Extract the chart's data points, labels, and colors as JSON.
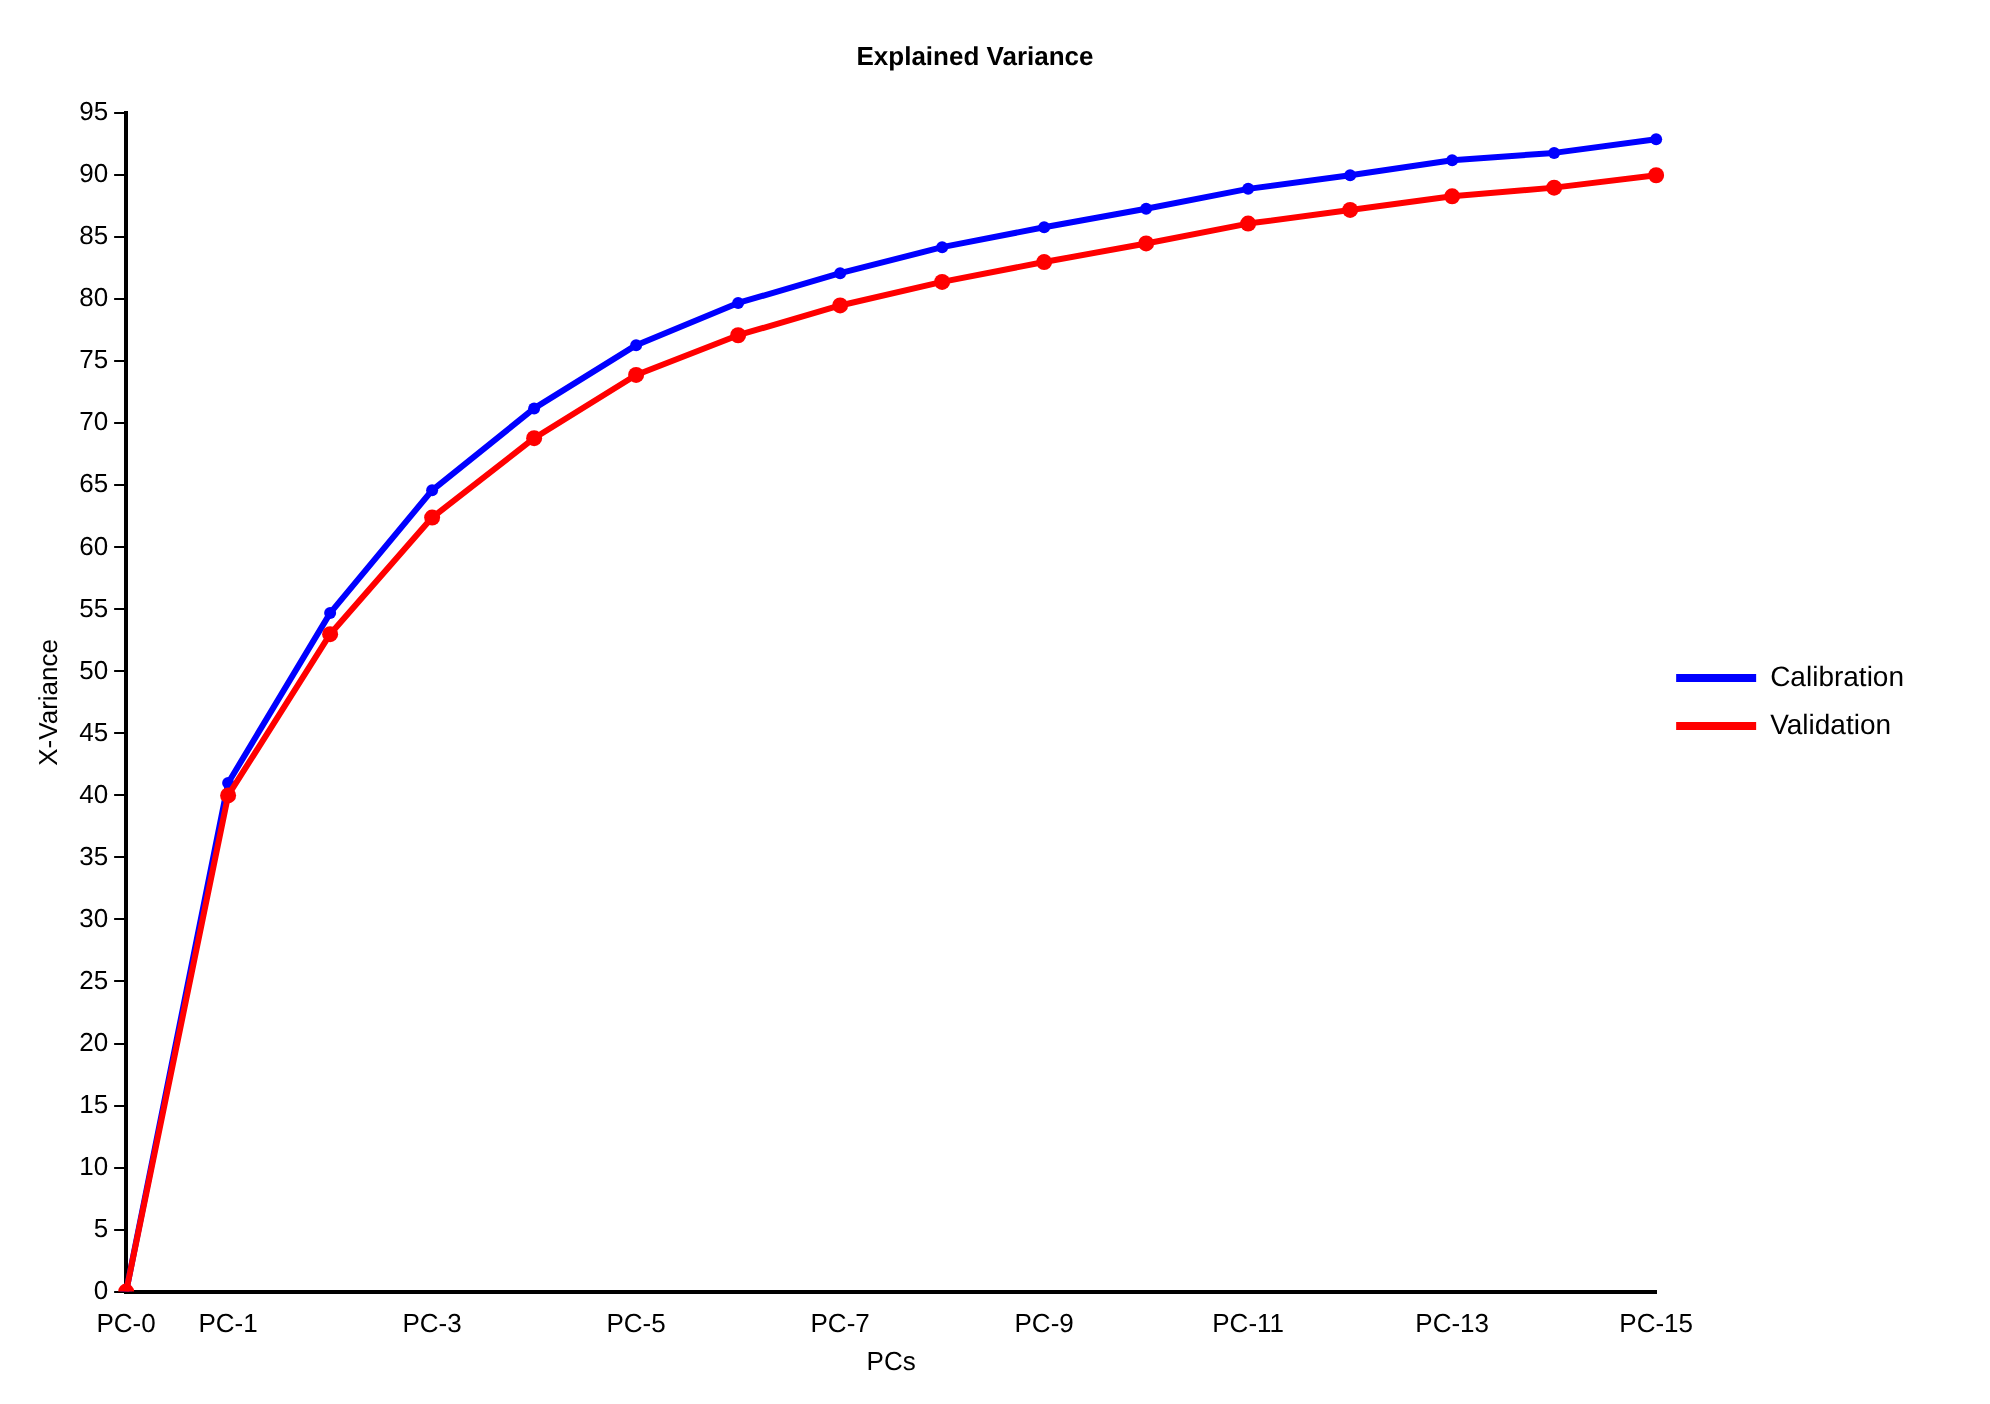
{
  "chart_data": {
    "type": "line",
    "title": "Explained Variance",
    "xlabel": "PCs",
    "ylabel": "X-Variance",
    "categories": [
      "PC-0",
      "PC-1",
      null,
      "PC-3",
      null,
      "PC-5",
      null,
      "PC-7",
      null,
      "PC-9",
      null,
      "PC-11",
      null,
      "PC-13",
      null,
      "PC-15"
    ],
    "series": [
      {
        "name": "Calibration",
        "color": "#0000ff",
        "values": [
          0,
          41,
          54.7,
          64.6,
          71.2,
          76.3,
          79.7,
          82.1,
          84.2,
          85.8,
          87.3,
          88.9,
          90.0,
          91.2,
          91.8,
          92.9
        ]
      },
      {
        "name": "Validation",
        "color": "#ff0000",
        "values": [
          0,
          40,
          53,
          62.4,
          68.8,
          73.9,
          77.1,
          79.5,
          81.4,
          83.0,
          84.5,
          86.1,
          87.2,
          88.3,
          89.0,
          90.0
        ]
      }
    ],
    "ylim": [
      0,
      95
    ],
    "yticks": [
      0,
      5,
      10,
      15,
      20,
      25,
      30,
      35,
      40,
      45,
      50,
      55,
      60,
      65,
      70,
      75,
      80,
      85,
      90,
      95
    ],
    "grid": false,
    "legend": "right",
    "marker": "circle",
    "line_style": "solid"
  }
}
